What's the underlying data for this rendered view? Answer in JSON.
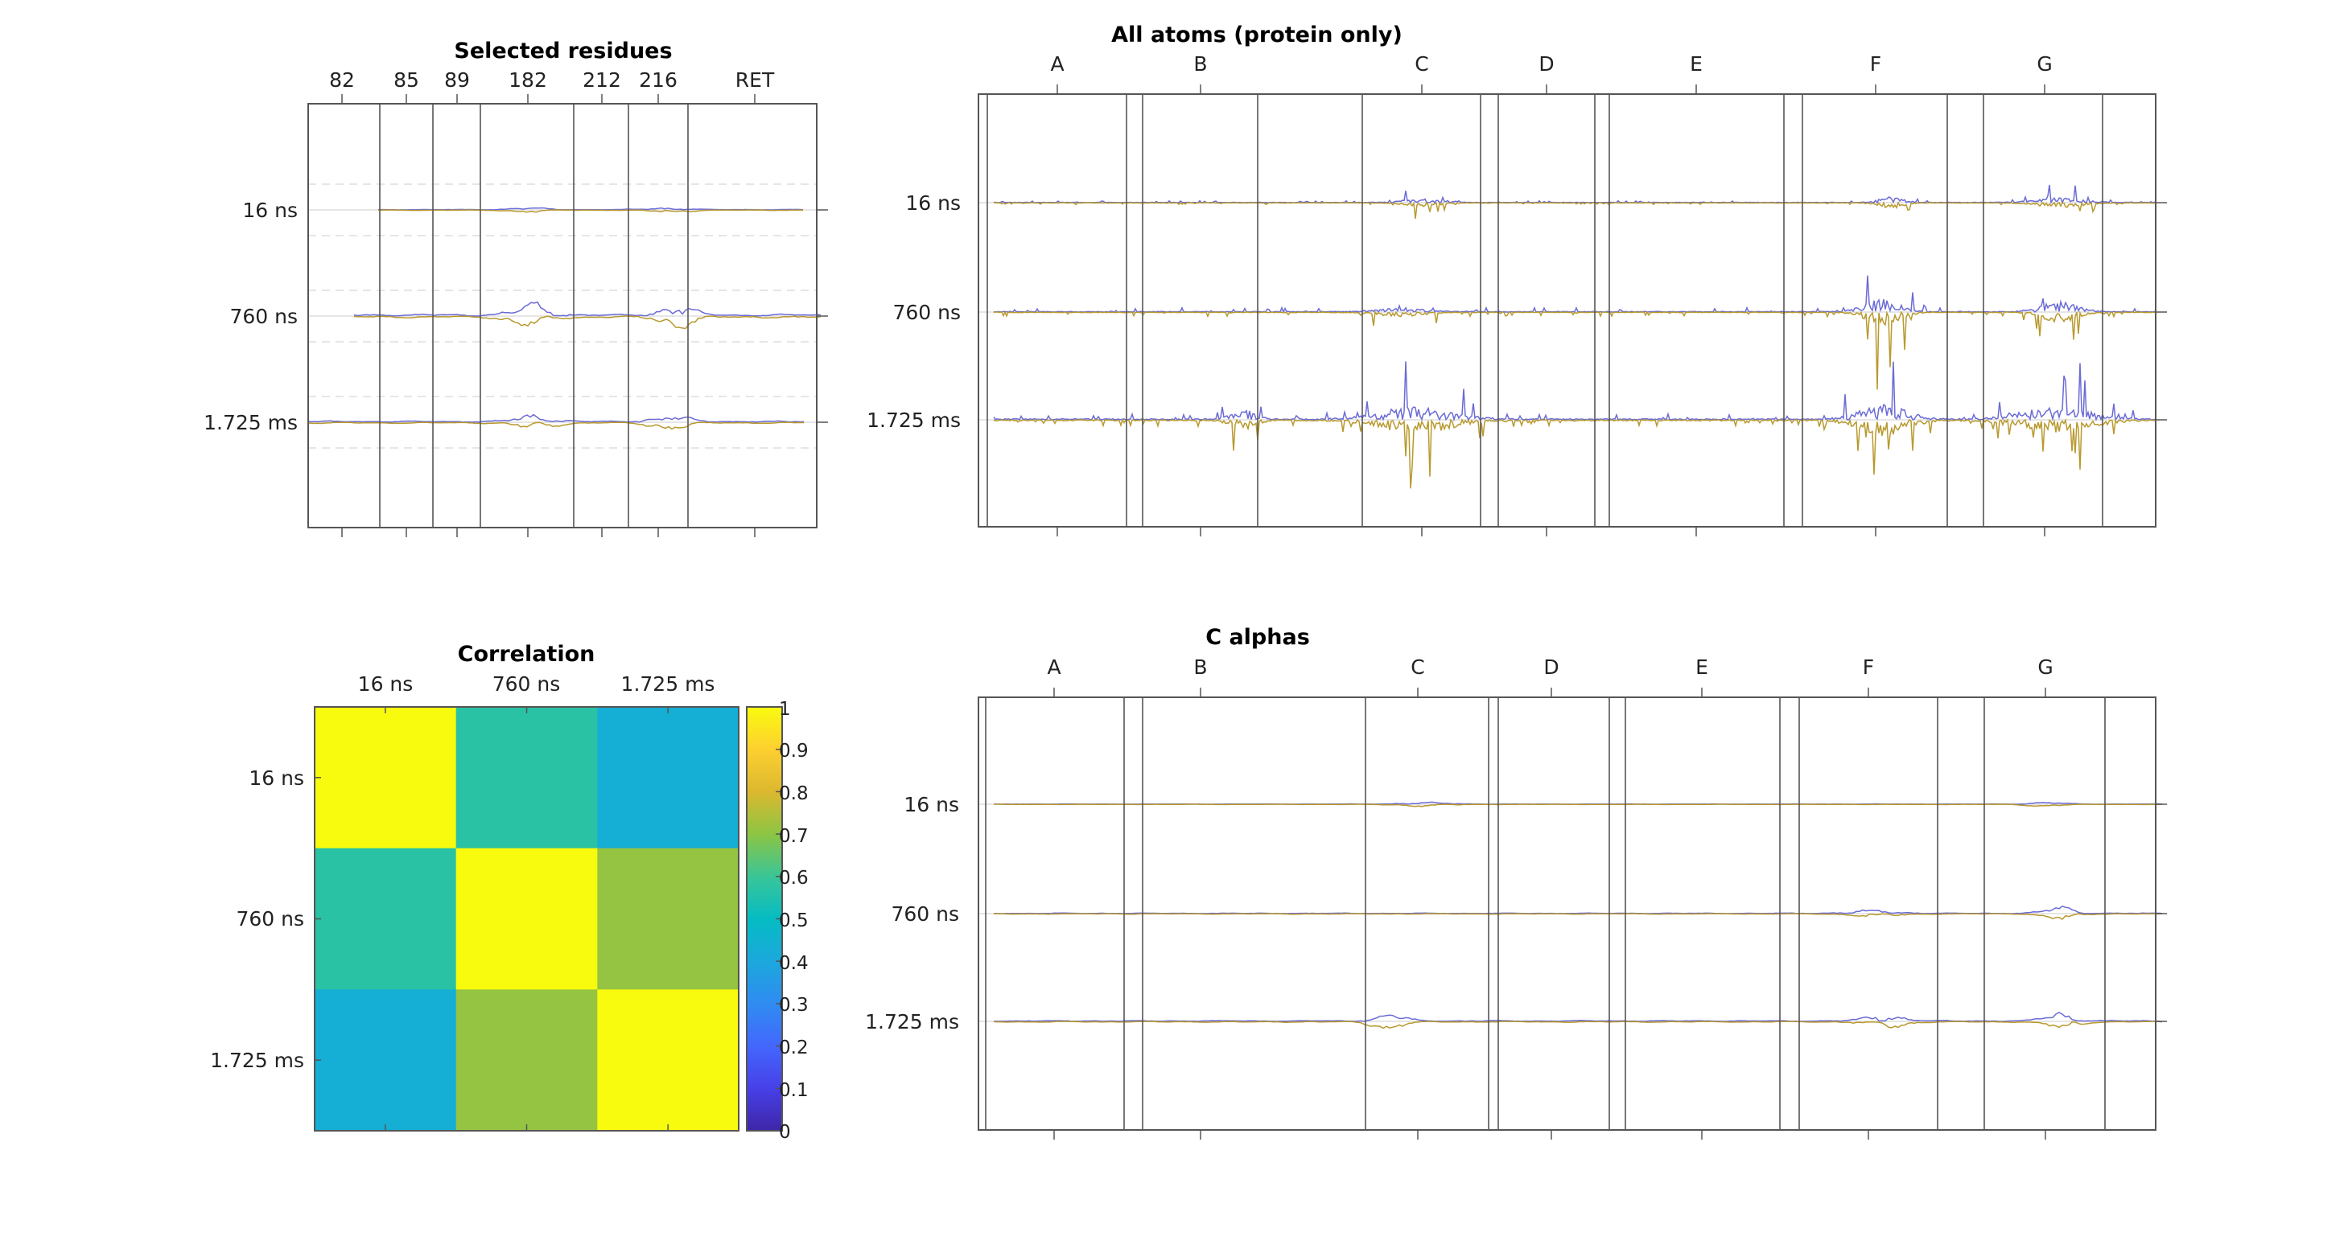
{
  "colors": {
    "blue": "#6b6bd6",
    "gold": "#b8992e",
    "frame": "#555555",
    "zero_line": "#dddddd",
    "dash_line": "#dddddd"
  },
  "chart_data": [
    {
      "type": "line",
      "title": "Selected residues",
      "top_ticks": [
        "82",
        "85",
        "89",
        "182",
        "212",
        "216",
        "RET"
      ],
      "row_labels": [
        "16 ns",
        "760 ns",
        "1.725 ms"
      ],
      "series": [
        {
          "color": "blue"
        },
        {
          "color": "gold"
        }
      ],
      "grid": false
    },
    {
      "type": "line",
      "title": "All atoms (protein only)",
      "top_ticks": [
        "A",
        "B",
        "C",
        "D",
        "E",
        "F",
        "G"
      ],
      "row_labels": [
        "16 ns",
        "760 ns",
        "1.725 ms"
      ],
      "series": [
        {
          "color": "blue"
        },
        {
          "color": "gold"
        }
      ],
      "grid": false
    },
    {
      "type": "heatmap",
      "title": "Correlation",
      "x_labels": [
        "16 ns",
        "760 ns",
        "1.725 ms"
      ],
      "y_labels": [
        "16 ns",
        "760 ns",
        "1.725 ms"
      ],
      "values": [
        [
          1.0,
          0.57,
          0.43
        ],
        [
          0.57,
          1.0,
          0.71
        ],
        [
          0.43,
          0.71,
          1.0
        ]
      ],
      "colorbar": {
        "range": [
          0,
          1
        ],
        "ticks": [
          "0",
          "0.1",
          "0.2",
          "0.3",
          "0.4",
          "0.5",
          "0.6",
          "0.7",
          "0.8",
          "0.9",
          "1"
        ]
      }
    },
    {
      "type": "line",
      "title": "C alphas",
      "top_ticks": [
        "A",
        "B",
        "C",
        "D",
        "E",
        "F",
        "G"
      ],
      "row_labels": [
        "16 ns",
        "760 ns",
        "1.725 ms"
      ],
      "series": [
        {
          "color": "blue"
        },
        {
          "color": "gold"
        }
      ],
      "grid": false
    }
  ]
}
